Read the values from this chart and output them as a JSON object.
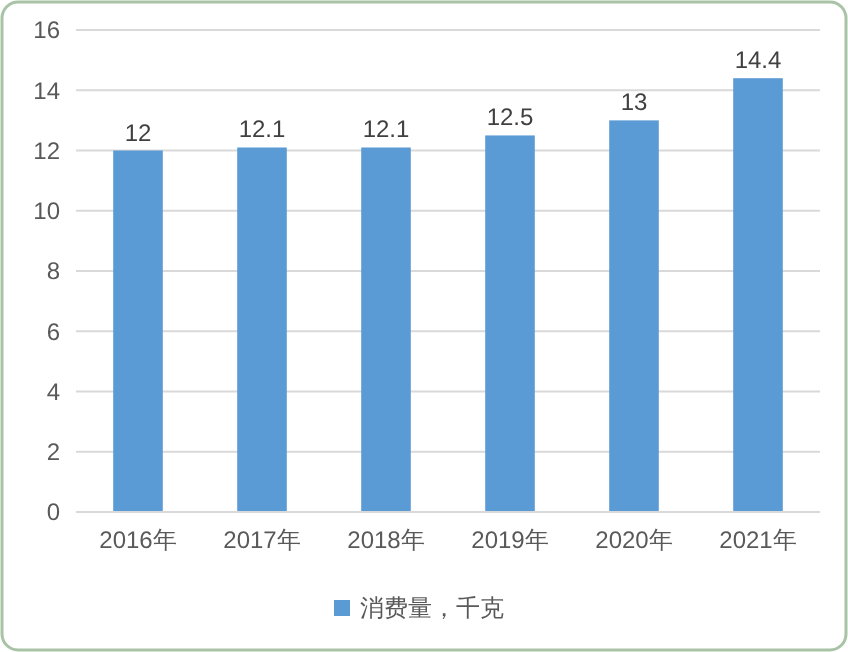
{
  "chart_data": {
    "type": "bar",
    "categories": [
      "2016年",
      "2017年",
      "2018年",
      "2019年",
      "2020年",
      "2021年"
    ],
    "series": [
      {
        "name": "消费量，千克",
        "color": "#5b9bd5",
        "values": [
          12,
          12.1,
          12.1,
          12.5,
          13,
          14.4
        ]
      }
    ],
    "ylim": [
      0,
      16
    ],
    "yticks": [
      0,
      2,
      4,
      6,
      8,
      10,
      12,
      14,
      16
    ],
    "grid": "y",
    "data_labels": true,
    "legend": "bottom"
  }
}
